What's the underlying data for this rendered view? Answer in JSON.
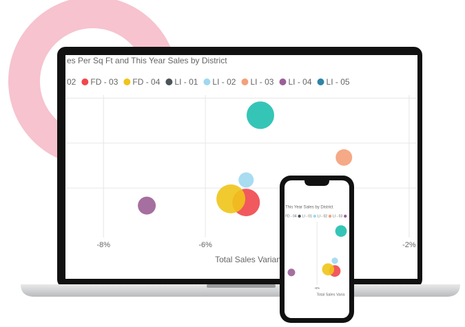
{
  "chart_data": {
    "type": "bubble",
    "title": "es Per Sq Ft and This Year Sales by District",
    "x_label": "Total Sales Varian",
    "series": [
      {
        "name": "02",
        "color": "#1fbfae",
        "x": [
          -4.92
        ],
        "values": [
          2.62
        ],
        "sizes": [
          20
        ]
      },
      {
        "name": "FD - 03",
        "color": "#f0474c",
        "x": [
          -5.2
        ],
        "values": [
          0.68
        ],
        "sizes": [
          20
        ]
      },
      {
        "name": "FD - 04",
        "color": "#f0c419",
        "x": [
          -5.5
        ],
        "values": [
          0.76
        ],
        "sizes": [
          21
        ]
      },
      {
        "name": "LI - 01",
        "color": "#4a5459",
        "x": [],
        "values": [],
        "sizes": []
      },
      {
        "name": "LI - 02",
        "color": "#9fd8f0",
        "x": [
          -5.2
        ],
        "values": [
          1.18
        ],
        "sizes": [
          11
        ]
      },
      {
        "name": "LI - 03",
        "color": "#f4a07a",
        "x": [
          -3.28
        ],
        "values": [
          1.68
        ],
        "sizes": [
          12
        ]
      },
      {
        "name": "LI - 04",
        "color": "#9b5f96",
        "x": [
          -7.15
        ],
        "values": [
          0.61
        ],
        "sizes": [
          13
        ]
      },
      {
        "name": "LI - 05",
        "color": "#2f84a8",
        "x": [],
        "values": [],
        "sizes": []
      }
    ],
    "xlim": [
      -8.72,
      -1.85
    ],
    "ylim": [
      -0.1,
      3.3
    ],
    "xticks": [
      {
        "value": -8,
        "label": "-8%"
      },
      {
        "value": -6,
        "label": "-6%"
      },
      {
        "value": -2,
        "label": "-2%"
      }
    ],
    "yticks": [
      1,
      2,
      3
    ],
    "grid": true
  },
  "phone_view": {
    "title": "This Year Sales by District",
    "legend": [
      "FD - 04",
      "LI - 01",
      "LI - 02",
      "LI - 03"
    ],
    "xtick": {
      "value": -6,
      "label": "-6%"
    },
    "x_label": "Total Sales Varia"
  }
}
